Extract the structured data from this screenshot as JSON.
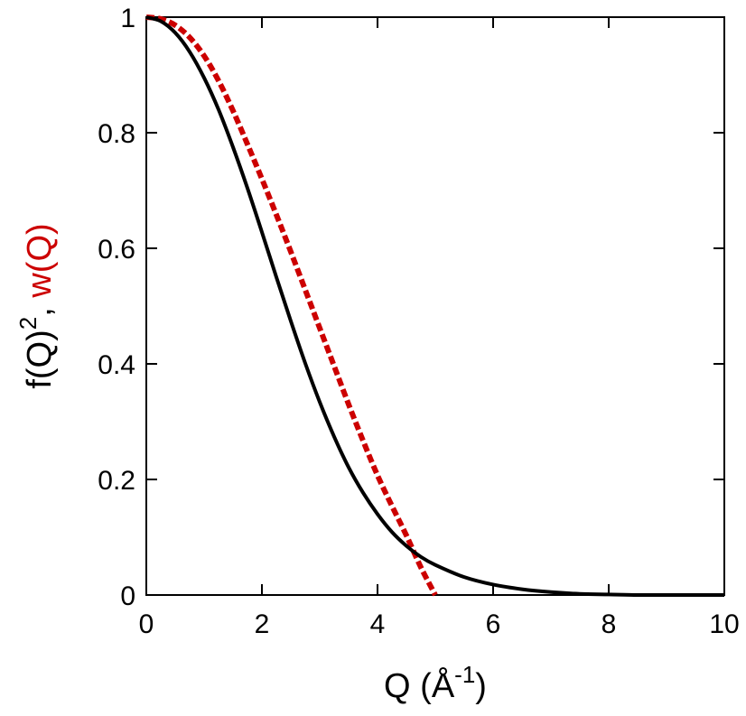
{
  "chart_data": {
    "type": "line",
    "title": "",
    "xlabel": {
      "main": "Q (Å",
      "sup": "-1",
      "close": ")"
    },
    "ylabel": {
      "part1": "f(Q)",
      "part1_sup": "2",
      "sep": ", ",
      "part2": "w(Q)"
    },
    "xlim": [
      0,
      10
    ],
    "ylim": [
      0,
      1
    ],
    "xticks": [
      "0",
      "2",
      "4",
      "6",
      "8",
      "10"
    ],
    "yticks": [
      "0",
      "0.2",
      "0.4",
      "0.6",
      "0.8",
      "1"
    ],
    "grid": false,
    "legend": "none",
    "colors": {
      "f": "#000000",
      "w": "#cc0000"
    },
    "series": [
      {
        "key": "f",
        "style": "solid",
        "x": [
          0,
          0.25,
          0.5,
          0.75,
          1.0,
          1.25,
          1.5,
          1.75,
          2.0,
          2.25,
          2.5,
          2.75,
          3.0,
          3.25,
          3.5,
          3.75,
          4.0,
          4.25,
          4.5,
          4.75,
          5.0,
          5.5,
          6.0,
          6.5,
          7.0,
          7.5,
          8.0,
          8.5,
          9.0,
          9.5,
          10.0
        ],
        "y": [
          1.0,
          0.993,
          0.973,
          0.94,
          0.895,
          0.84,
          0.775,
          0.704,
          0.628,
          0.55,
          0.474,
          0.401,
          0.334,
          0.274,
          0.221,
          0.177,
          0.14,
          0.109,
          0.085,
          0.066,
          0.052,
          0.031,
          0.018,
          0.01,
          0.005,
          0.002,
          0.001,
          0.0,
          0.0,
          0.0,
          0.0
        ]
      },
      {
        "key": "w",
        "style": "dashed",
        "x": [
          0,
          0.25,
          0.5,
          0.75,
          1.0,
          1.25,
          1.5,
          1.75,
          2.0,
          2.25,
          2.5,
          2.75,
          3.0,
          3.25,
          3.5,
          3.75,
          4.0,
          4.25,
          4.5,
          4.75,
          5.0
        ],
        "y": [
          1.0,
          0.997,
          0.986,
          0.965,
          0.933,
          0.89,
          0.838,
          0.78,
          0.72,
          0.658,
          0.594,
          0.528,
          0.462,
          0.396,
          0.33,
          0.267,
          0.207,
          0.154,
          0.103,
          0.048,
          0.0
        ]
      }
    ]
  }
}
